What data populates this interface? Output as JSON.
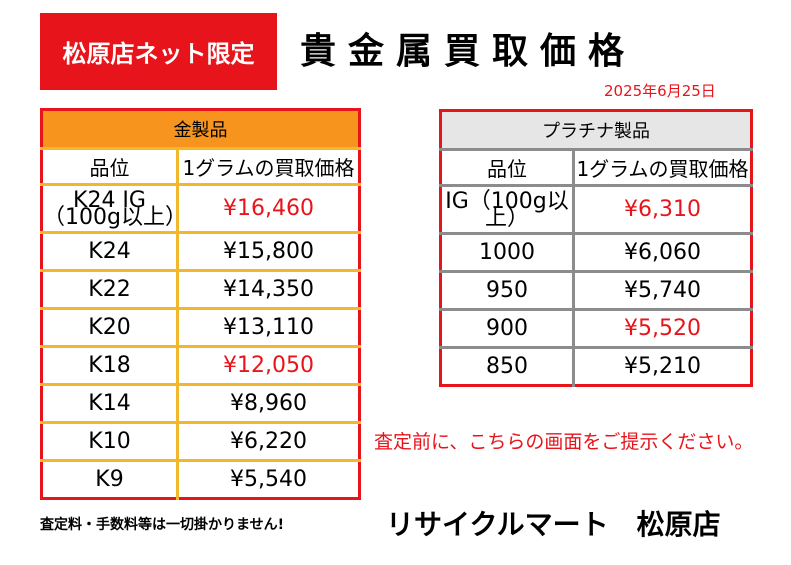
{
  "badge": "松原店ネット限定",
  "title": "貴金属買取価格",
  "date": "2025年6月25日",
  "gold": {
    "header": "金製品",
    "col_grade": "品位",
    "col_price": "1グラムの買取価格",
    "rows": [
      {
        "grade": "K24 IG（100g以上）",
        "price": "¥16,460"
      },
      {
        "grade": "K24",
        "price": "¥15,800"
      },
      {
        "grade": "K22",
        "price": "¥14,350"
      },
      {
        "grade": "K20",
        "price": "¥13,110"
      },
      {
        "grade": "K18",
        "price": "¥12,050"
      },
      {
        "grade": "K14",
        "price": "¥8,960"
      },
      {
        "grade": "K10",
        "price": "¥6,220"
      },
      {
        "grade": "K9",
        "price": "¥5,540"
      }
    ]
  },
  "platinum": {
    "header": "プラチナ製品",
    "col_grade": "品位",
    "col_price": "1グラムの買取価格",
    "rows": [
      {
        "grade": "IG（100g以上）",
        "price": "¥6,310"
      },
      {
        "grade": "1000",
        "price": "¥6,060"
      },
      {
        "grade": "950",
        "price": "¥5,740"
      },
      {
        "grade": "900",
        "price": "¥5,520"
      },
      {
        "grade": "850",
        "price": "¥5,210"
      }
    ]
  },
  "notice": "査定前に、こちらの画面をご提示ください。",
  "fees_note": "査定料・手数料等は一切掛かりません!",
  "store_name": "リサイクルマート　松原店",
  "colors": {
    "accent_red": "#e8141b",
    "gold_header": "#f7941d",
    "gold_border": "#f0b82a",
    "platinum_header": "#e6e6e6",
    "platinum_border": "#8c8c8c"
  }
}
